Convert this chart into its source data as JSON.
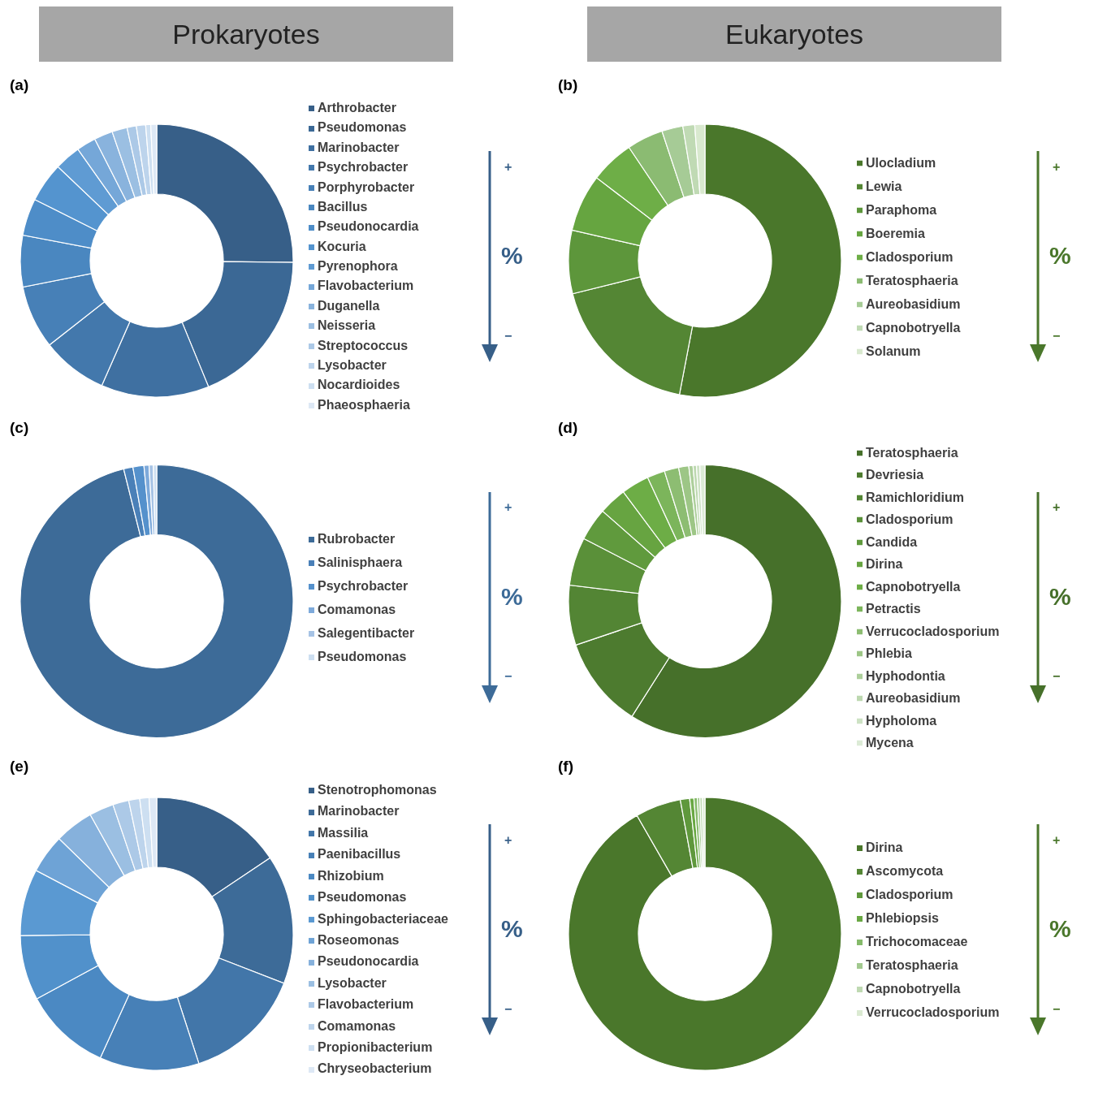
{
  "chart_data": [
    {
      "type": "donut",
      "title": "(a)",
      "subtitle": "Prokaryotes",
      "legend": "right",
      "annotations": [
        "+",
        "%",
        "−"
      ],
      "categories": [
        "Arthrobacter",
        "Pseudomonas",
        "Marinobacter",
        "Psychrobacter",
        "Porphyrobacter",
        "Bacillus",
        "Pseudonocardia",
        "Kocuria",
        "Pyrenophora",
        "Flavobacterium",
        "Duganella",
        "Neisseria",
        "Streptococcus",
        "Lysobacter",
        "Nocardioides",
        "Phaeosphaeria"
      ],
      "values": [
        25.2,
        18.6,
        12.8,
        7.8,
        7.5,
        6.1,
        4.4,
        4.7,
        3.1,
        2.3,
        2.2,
        1.8,
        1.1,
        1.1,
        0.6,
        0.7
      ],
      "colors": [
        "#375f88",
        "#3b6895",
        "#3f70a1",
        "#4378ac",
        "#4780b7",
        "#4a87c0",
        "#4e8dc8",
        "#5494cf",
        "#5f9bd3",
        "#75a7d8",
        "#89b3dd",
        "#9bbfe2",
        "#acc9e7",
        "#bdd4ec",
        "#cddff1",
        "#dde8f5"
      ]
    },
    {
      "type": "donut",
      "title": "(b)",
      "subtitle": "Eukaryotes",
      "legend": "right",
      "annotations": [
        "+",
        "%",
        "−"
      ],
      "categories": [
        "Ulocladium",
        "Lewia",
        "Paraphoma",
        "Boeremia",
        "Cladosporium",
        "Teratosphaeria",
        "Aureobasidium",
        "Capnobotryella",
        "Solanum"
      ],
      "values": [
        53.0,
        18.1,
        7.5,
        6.8,
        5.2,
        4.3,
        2.5,
        1.4,
        1.2
      ],
      "colors": [
        "#4a772b",
        "#548634",
        "#5d963b",
        "#66a540",
        "#6eae47",
        "#8bbb72",
        "#a6cb96",
        "#c0dab4",
        "#d9e9cf"
      ]
    },
    {
      "type": "donut",
      "title": "(c)",
      "legend": "right",
      "annotations": [
        "+",
        "%",
        "−"
      ],
      "categories": [
        "Rubrobacter",
        "Salinisphaera",
        "Psychrobacter",
        "Comamonas",
        "Salegentibacter",
        "Pseudomonas"
      ],
      "values": [
        96.1,
        1.1,
        1.3,
        0.6,
        0.5,
        0.4
      ],
      "colors": [
        "#3d6b98",
        "#4a80b8",
        "#5591cc",
        "#7eaadb",
        "#a6c3e5",
        "#cddff1"
      ]
    },
    {
      "type": "donut",
      "title": "(d)",
      "legend": "right",
      "annotations": [
        "+",
        "%",
        "−"
      ],
      "categories": [
        "Teratosphaeria",
        "Devriesia",
        "Ramichloridium",
        "Cladosporium",
        "Candida",
        "Dirina",
        "Capnobotryella",
        "Petractis",
        "Verrucocladosporium",
        "Phlebia",
        "Hyphodontia",
        "Aureobasidium",
        "Hypholoma",
        "Mycena"
      ],
      "values": [
        59.0,
        10.8,
        7.1,
        5.7,
        3.9,
        3.3,
        3.3,
        2.1,
        1.7,
        1.2,
        0.5,
        0.4,
        0.4,
        0.6
      ],
      "colors": [
        "#46702a",
        "#4d7b2f",
        "#538534",
        "#5a9039",
        "#609a3d",
        "#67a441",
        "#6dad46",
        "#7cb55b",
        "#8dbd72",
        "#9dc686",
        "#adcf9b",
        "#bdd8b0",
        "#cde2c4",
        "#dcebd6"
      ]
    },
    {
      "type": "donut",
      "title": "(e)",
      "legend": "right",
      "annotations": [
        "+",
        "%",
        "−"
      ],
      "categories": [
        "Stenotrophomonas",
        "Marinobacter",
        "Massilia",
        "Paenibacillus",
        "Rhizobium",
        "Pseudomonas",
        "Sphingobacteriaceae",
        "Roseomonas",
        "Pseudonocardia",
        "Lysobacter",
        "Flavobacterium",
        "Comamonas",
        "Propionibacterium",
        "Chryseobacterium"
      ],
      "values": [
        15.6,
        15.3,
        14.1,
        11.8,
        10.3,
        7.7,
        7.9,
        4.6,
        4.6,
        2.9,
        1.9,
        1.3,
        1.1,
        0.9
      ],
      "colors": [
        "#375f88",
        "#3d6b98",
        "#4276a9",
        "#4780b7",
        "#4b89c3",
        "#5191cb",
        "#5a99d2",
        "#6ea3d6",
        "#86b1dc",
        "#9bbfe2",
        "#acc9e7",
        "#bdd4ec",
        "#cddff1",
        "#dde8f5"
      ]
    },
    {
      "type": "donut",
      "title": "(f)",
      "legend": "right",
      "annotations": [
        "+",
        "%",
        "−"
      ],
      "categories": [
        "Dirina",
        "Ascomycota",
        "Cladosporium",
        "Phlebiopsis",
        "Trichocomaceae",
        "Teratosphaeria",
        "Capnobotryella",
        "Verrucocladosporium"
      ],
      "values": [
        91.7,
        5.4,
        1.1,
        0.5,
        0.4,
        0.3,
        0.3,
        0.3
      ],
      "colors": [
        "#4a772b",
        "#548634",
        "#5f983c",
        "#69a843",
        "#85ba6a",
        "#a2c98f",
        "#bfd9b2",
        "#dbead2"
      ]
    }
  ]
}
